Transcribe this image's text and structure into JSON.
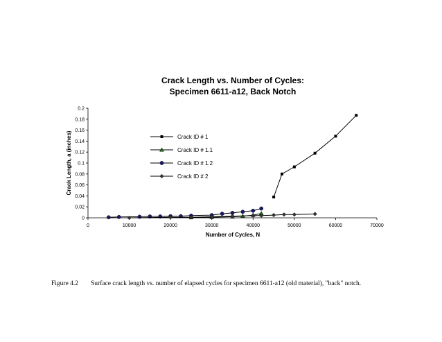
{
  "chart_data": {
    "type": "line",
    "title_lines": [
      "Crack Length vs. Number of Cycles:",
      "Specimen 6611-a12, Back Notch"
    ],
    "xlabel": "Number of Cycles, N",
    "ylabel": "Crack Length, a (inches)",
    "xlim": [
      0,
      70000
    ],
    "ylim": [
      0,
      0.2
    ],
    "x_ticks": [
      0,
      10000,
      20000,
      30000,
      40000,
      50000,
      60000,
      70000
    ],
    "y_ticks": [
      0,
      0.02,
      0.04,
      0.06,
      0.08,
      0.1,
      0.12,
      0.14,
      0.16,
      0.18,
      0.2
    ],
    "x_tick_labels": [
      "0",
      "10000",
      "20000",
      "30000",
      "40000",
      "50000",
      "60000",
      "70000"
    ],
    "y_tick_labels": [
      "0",
      "0.02",
      "0.04",
      "0.06",
      "0.08",
      "0.1",
      "0.12",
      "0.14",
      "0.16",
      "0.18",
      "0.2"
    ],
    "grid": false,
    "legend_position": "center-left inside plot",
    "series": [
      {
        "name": "Crack ID # 1",
        "marker": "square",
        "color": "#000000",
        "x": [
          45000,
          47000,
          50000,
          55000,
          60000,
          65000
        ],
        "y": [
          0.038,
          0.08,
          0.093,
          0.118,
          0.149,
          0.187
        ]
      },
      {
        "name": "Crack ID # 1.1",
        "marker": "triangle",
        "color": "#000000",
        "fill": "#1a7a1a",
        "x": [
          25000,
          30000,
          35000,
          37500,
          40000,
          42000
        ],
        "y": [
          0.0005,
          0.001,
          0.002,
          0.003,
          0.005,
          0.008
        ]
      },
      {
        "name": "Crack ID # 1.2",
        "marker": "circle",
        "color": "#000000",
        "fill": "#1a1a6e",
        "x": [
          5000,
          7500,
          12500,
          15000,
          17500,
          20000,
          22500,
          25000,
          30000,
          32500,
          35000,
          37500,
          40000,
          42000
        ],
        "y": [
          0.001,
          0.0015,
          0.002,
          0.0025,
          0.0025,
          0.003,
          0.003,
          0.004,
          0.005,
          0.0075,
          0.009,
          0.011,
          0.013,
          0.017
        ]
      },
      {
        "name": "Crack ID # 2",
        "marker": "diamond",
        "color": "#000000",
        "fill": "#333333",
        "x": [
          10000,
          20000,
          25000,
          30000,
          35000,
          40000,
          42000,
          45000,
          47500,
          50000,
          55000
        ],
        "y": [
          0.0,
          0.001,
          0.001,
          0.002,
          0.003,
          0.004,
          0.004,
          0.005,
          0.006,
          0.006,
          0.007
        ]
      }
    ]
  },
  "caption": {
    "label": "Figure 4.2",
    "text": "Surface crack length vs. number of elapsed cycles for specimen 6611-a12 (old material), \"back\" notch."
  }
}
